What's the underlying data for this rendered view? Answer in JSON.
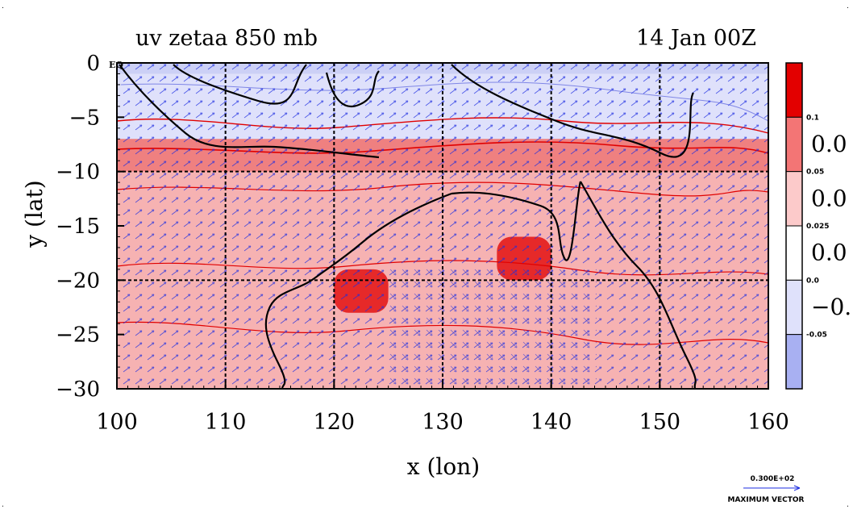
{
  "chart_data": {
    "type": "heatmap",
    "title_left": "uv zetaa 850 mb",
    "title_right": "14 Jan 00Z",
    "xlabel": "x (lon)",
    "ylabel": "y (lat)",
    "x_ticks": [
      100,
      110,
      120,
      130,
      140,
      150,
      160
    ],
    "y_ticks": [
      0,
      -5,
      -10,
      -15,
      -20,
      -25,
      -30
    ],
    "x_tick_labels": [
      "100",
      "110",
      "120",
      "130",
      "140",
      "150",
      "160"
    ],
    "y_tick_labels": [
      "0",
      "−5",
      "−10",
      "−15",
      "−20",
      "−25",
      "−30"
    ],
    "eq_label": "EQ",
    "xlim": [
      100,
      160
    ],
    "ylim": [
      -30,
      0
    ],
    "grid_lon": [
      110,
      120,
      130,
      140,
      150
    ],
    "grid_lat": [
      -10,
      -20
    ],
    "colorbar": {
      "levels": [
        -0.05,
        0.0,
        0.025,
        0.05,
        0.1
      ],
      "small_labels": [
        "0.1",
        "0.05",
        "0.025",
        "0.0",
        "-0.05"
      ],
      "large_labels": [
        "0.0",
        "0.0",
        "0.0",
        "−0."
      ],
      "colors": [
        "#e30000",
        "#f37575",
        "#fccaca",
        "#ffffff",
        "#dfe1fb",
        "#a8b0f2"
      ]
    },
    "vector_legend": {
      "value": "0.300E+02",
      "caption": "MAXIMUM VECTOR"
    },
    "field_regions": [
      {
        "value": "strong_negative",
        "lon": [
          100,
          160
        ],
        "lat": [
          -1,
          -7
        ]
      },
      {
        "value": "positive_high",
        "lon": [
          100,
          160
        ],
        "lat": [
          -7,
          -10
        ]
      },
      {
        "value": "positive_moderate",
        "lon": [
          100,
          160
        ],
        "lat": [
          -10,
          -30
        ]
      },
      {
        "value": "strong_positive",
        "lon": [
          120,
          125
        ],
        "lat": [
          -19,
          -23
        ]
      },
      {
        "value": "strong_positive",
        "lon": [
          135,
          140
        ],
        "lat": [
          -16,
          -20
        ]
      }
    ],
    "colors": {
      "axis": "#000000",
      "vector": "#1c2ce0",
      "contour": "#e00000",
      "coast": "#000000",
      "background": "#ffffff"
    }
  }
}
